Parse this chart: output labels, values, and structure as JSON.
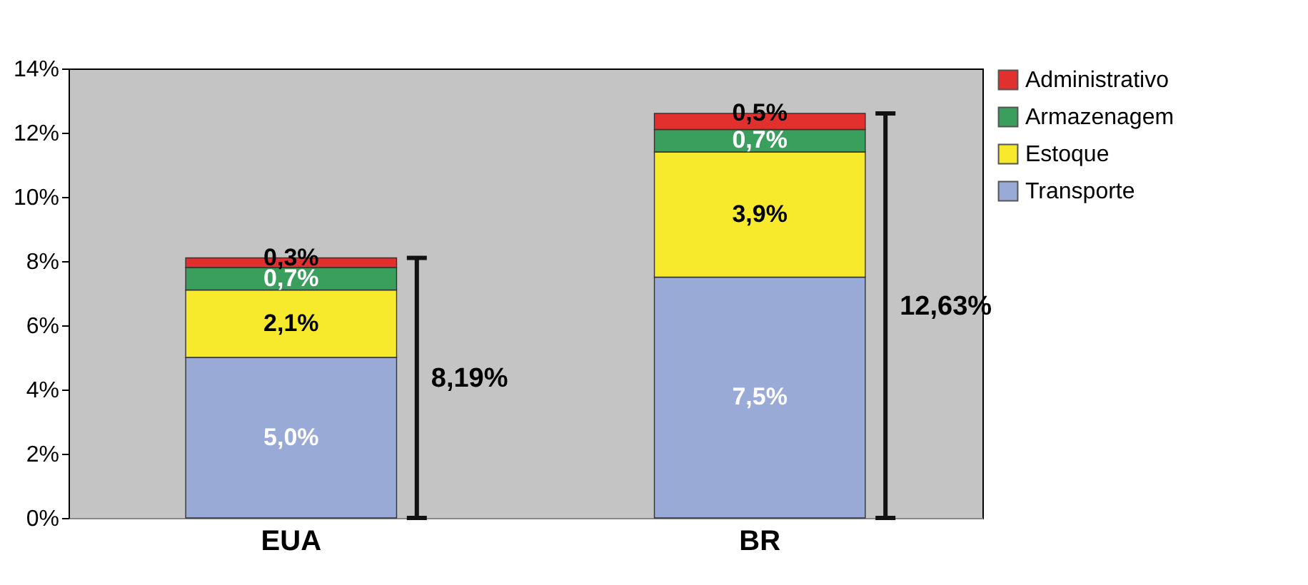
{
  "chart_data": {
    "type": "bar",
    "stacked": true,
    "categories": [
      "EUA",
      "BR"
    ],
    "series": [
      {
        "name": "Transporte",
        "color": "#9aaad6",
        "values": [
          5.0,
          7.5
        ],
        "value_labels": [
          "5,0%",
          "7,5%"
        ]
      },
      {
        "name": "Estoque",
        "color": "#f7ea2c",
        "values": [
          2.1,
          3.9
        ],
        "value_labels": [
          "2,1%",
          "3,9%"
        ]
      },
      {
        "name": "Armazenagem",
        "color": "#3a9e5c",
        "values": [
          0.7,
          0.7
        ],
        "value_labels": [
          "0,7%",
          "0,7%"
        ]
      },
      {
        "name": "Administrativo",
        "color": "#e2302e",
        "values": [
          0.3,
          0.5
        ],
        "value_labels": [
          "0,3%",
          "0,5%"
        ]
      }
    ],
    "annotations": [
      "8,19%",
      "12,63%"
    ],
    "ylim": [
      0,
      14
    ],
    "yticks": [
      {
        "value": 0,
        "label": "0%"
      },
      {
        "value": 2,
        "label": "2%"
      },
      {
        "value": 4,
        "label": "4%"
      },
      {
        "value": 6,
        "label": "6%"
      },
      {
        "value": 8,
        "label": "8%"
      },
      {
        "value": 10,
        "label": "10%"
      },
      {
        "value": 12,
        "label": "12%"
      },
      {
        "value": 14,
        "label": "14%"
      }
    ],
    "legend": "right",
    "grid": false
  }
}
